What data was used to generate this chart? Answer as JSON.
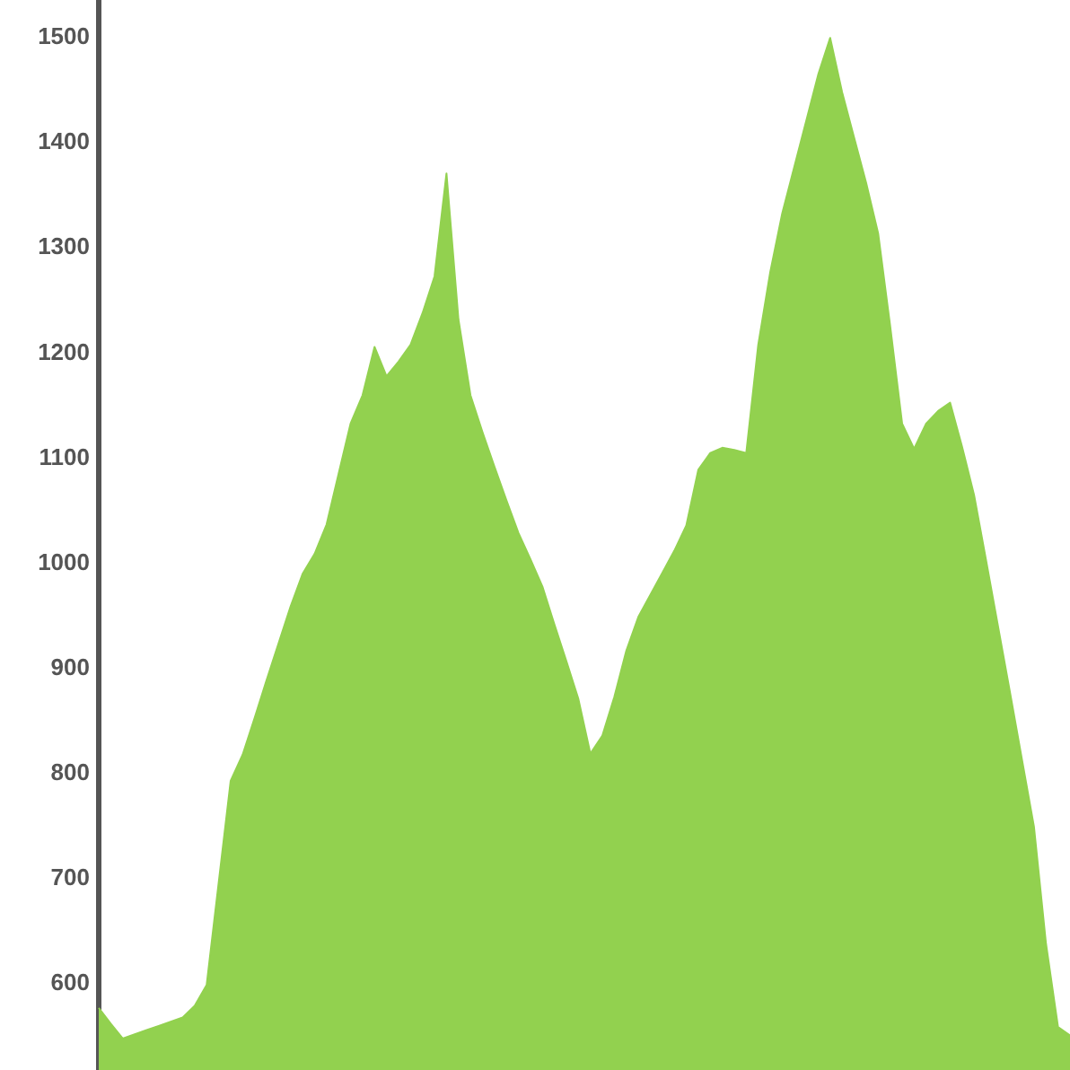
{
  "chart_data": {
    "type": "area",
    "color": "#92d14f",
    "categories": [
      null,
      null,
      null,
      null,
      null,
      null,
      null,
      null,
      null,
      null,
      null,
      null,
      null,
      null,
      null,
      null,
      null,
      null,
      null,
      null,
      null,
      null,
      null,
      null,
      null,
      null,
      null,
      null,
      null,
      null,
      null,
      null,
      null,
      null,
      null,
      null,
      null,
      null,
      null,
      null,
      null,
      null,
      null,
      null,
      null,
      null,
      null,
      null,
      null,
      null,
      null,
      null,
      null,
      null,
      null,
      null,
      null,
      null,
      null,
      null,
      null,
      null,
      null,
      null,
      null,
      null,
      null,
      null,
      null,
      null,
      null,
      null,
      null,
      null,
      null,
      null,
      null,
      null,
      null,
      null,
      null,
      null
    ],
    "values": [
      577,
      562,
      548,
      552,
      556,
      560,
      564,
      568,
      579,
      599,
      696,
      793,
      818,
      853,
      889,
      924,
      959,
      990,
      1009,
      1037,
      1085,
      1133,
      1160,
      1206,
      1178,
      1192,
      1208,
      1238,
      1273,
      1371,
      1232,
      1160,
      1125,
      1092,
      1060,
      1029,
      1004,
      978,
      942,
      907,
      871,
      819,
      836,
      873,
      917,
      949,
      970,
      991,
      1012,
      1036,
      1089,
      1105,
      1110,
      1108,
      1105,
      1208,
      1277,
      1333,
      1377,
      1421,
      1465,
      1500,
      1448,
      1405,
      1362,
      1314,
      1226,
      1133,
      1109,
      1133,
      1145,
      1153,
      1111,
      1065,
      1003,
      940,
      877,
      813,
      749,
      638,
      559,
      551
    ],
    "ylim": [
      518,
      1536
    ],
    "yticks": [
      600,
      700,
      800,
      900,
      1000,
      1100,
      1200,
      1300,
      1400,
      1500
    ]
  }
}
